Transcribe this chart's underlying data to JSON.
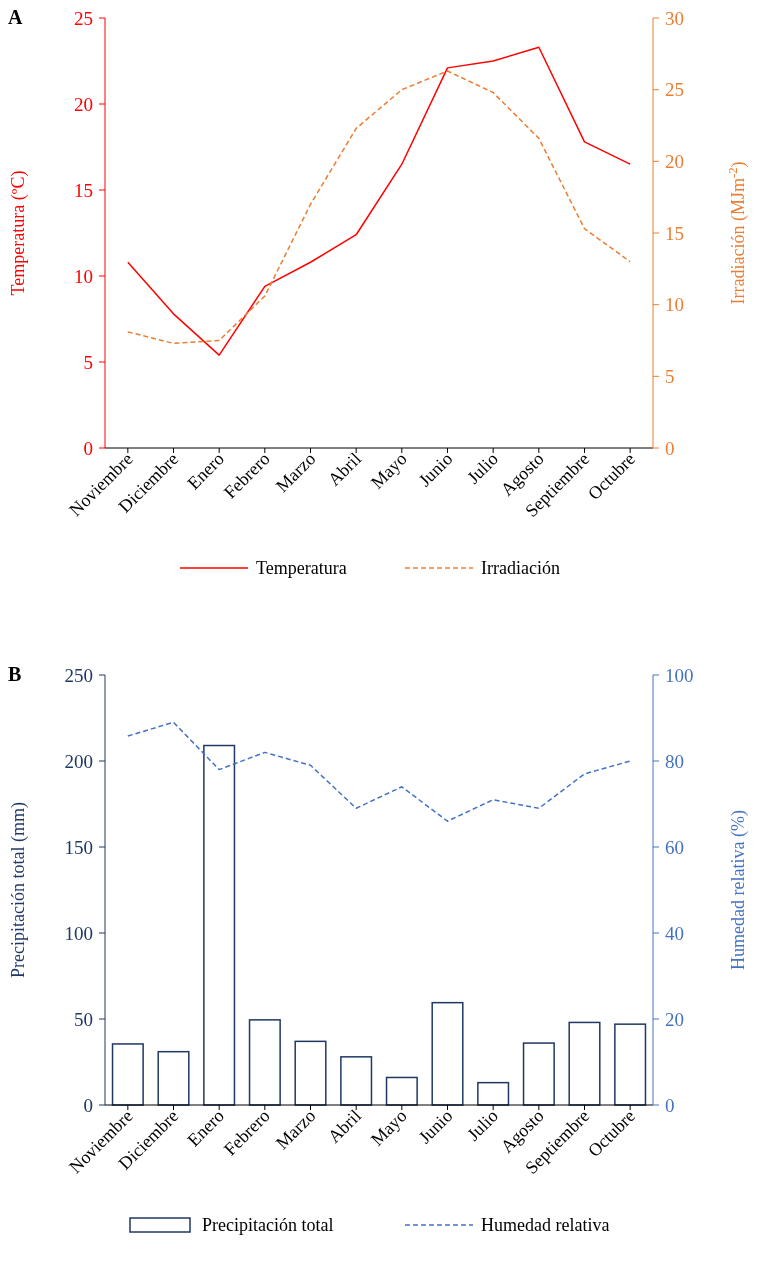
{
  "chart_data": [
    {
      "type": "line",
      "title": "A",
      "categories": [
        "Noviembre",
        "Diciembre",
        "Enero",
        "Febrero",
        "Marzo",
        "Abril",
        "Mayo",
        "Junio",
        "Julio",
        "Agosto",
        "Septiembre",
        "Octubre"
      ],
      "ylabel": "Temperatura (ºC)",
      "y2label": "Irradiación (MJm$^{-2}$)",
      "ylim": [
        0,
        25
      ],
      "yticks": [
        0,
        5,
        10,
        15,
        20,
        25
      ],
      "y2lim": [
        0,
        30
      ],
      "y2ticks": [
        0,
        5,
        10,
        15,
        20,
        25,
        30
      ],
      "grid": false,
      "legend": "bottom",
      "series": [
        {
          "name": "Temperatura",
          "color": "#ff0000",
          "line_style": "solid",
          "values": [
            10.8,
            7.8,
            5.4,
            9.4,
            10.8,
            12.4,
            16.5,
            22.1,
            22.5,
            23.3,
            17.8,
            16.5
          ]
        },
        {
          "name": "Irradiación",
          "axis": "y2",
          "color": "#ed7d31",
          "line_style": "dashed",
          "values": [
            8.1,
            7.3,
            7.5,
            10.6,
            17.0,
            22.3,
            25.0,
            26.3,
            24.8,
            21.6,
            15.3,
            13.0
          ]
        }
      ]
    },
    {
      "type": "bar",
      "title": "B",
      "categories": [
        "Noviembre",
        "Diciembre",
        "Enero",
        "Febrero",
        "Marzo",
        "Abril",
        "Mayo",
        "Junio",
        "Julio",
        "Agosto",
        "Septiembre",
        "Octubre"
      ],
      "ylabel": "Precipitación total (mm)",
      "y2label": "Humedad relativa (%)",
      "ylim": [
        0,
        250
      ],
      "yticks": [
        0,
        50,
        100,
        150,
        200,
        250
      ],
      "y2lim": [
        0,
        100
      ],
      "y2ticks": [
        0,
        20,
        40,
        60,
        80,
        100
      ],
      "grid": false,
      "legend": "bottom",
      "series": [
        {
          "name": "Precipitación total",
          "color": "#1f3864",
          "values": [
            35.5,
            31,
            209,
            49.5,
            37,
            28,
            16,
            59.5,
            13,
            36,
            48,
            47
          ]
        },
        {
          "name": "Humedad relativa",
          "type": "line",
          "axis": "y2",
          "color": "#4472c4",
          "line_style": "dashed",
          "values": [
            85.8,
            89,
            78,
            82,
            79,
            69,
            74,
            66,
            71,
            69,
            77,
            80
          ]
        }
      ]
    }
  ]
}
